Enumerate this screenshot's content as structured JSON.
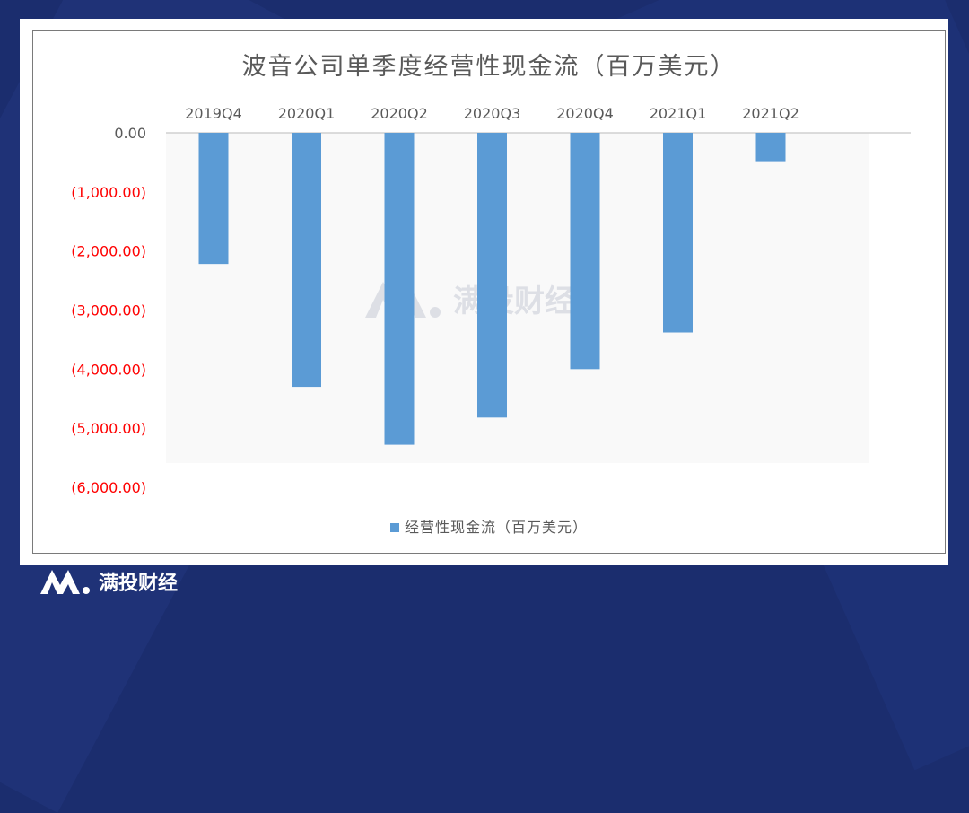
{
  "brand": {
    "name": "满投财经"
  },
  "chart_data": {
    "type": "bar",
    "title": "波音公司单季度经营性现金流（百万美元）",
    "categories": [
      "2019Q4",
      "2020Q1",
      "2020Q2",
      "2020Q3",
      "2020Q4",
      "2021Q1",
      "2021Q2"
    ],
    "series": [
      {
        "name": "经营性现金流（百万美元）",
        "values": [
          -2220,
          -4300,
          -5280,
          -4820,
          -4000,
          -3380,
          -480
        ],
        "color": "#5b9bd5"
      }
    ],
    "ylim": [
      -6000,
      0
    ],
    "yticks": [
      0,
      -1000,
      -2000,
      -3000,
      -4000,
      -5000,
      -6000
    ],
    "ytick_labels": [
      "0.00",
      "(1,000.00)",
      "(2,000.00)",
      "(3,000.00)",
      "(4,000.00)",
      "(5,000.00)",
      "(6,000.00)"
    ],
    "ytick_colors": {
      "zero": "#595959",
      "negative": "#ff0000"
    },
    "category_axis_position": "top",
    "legend_position": "bottom",
    "grid": false
  }
}
